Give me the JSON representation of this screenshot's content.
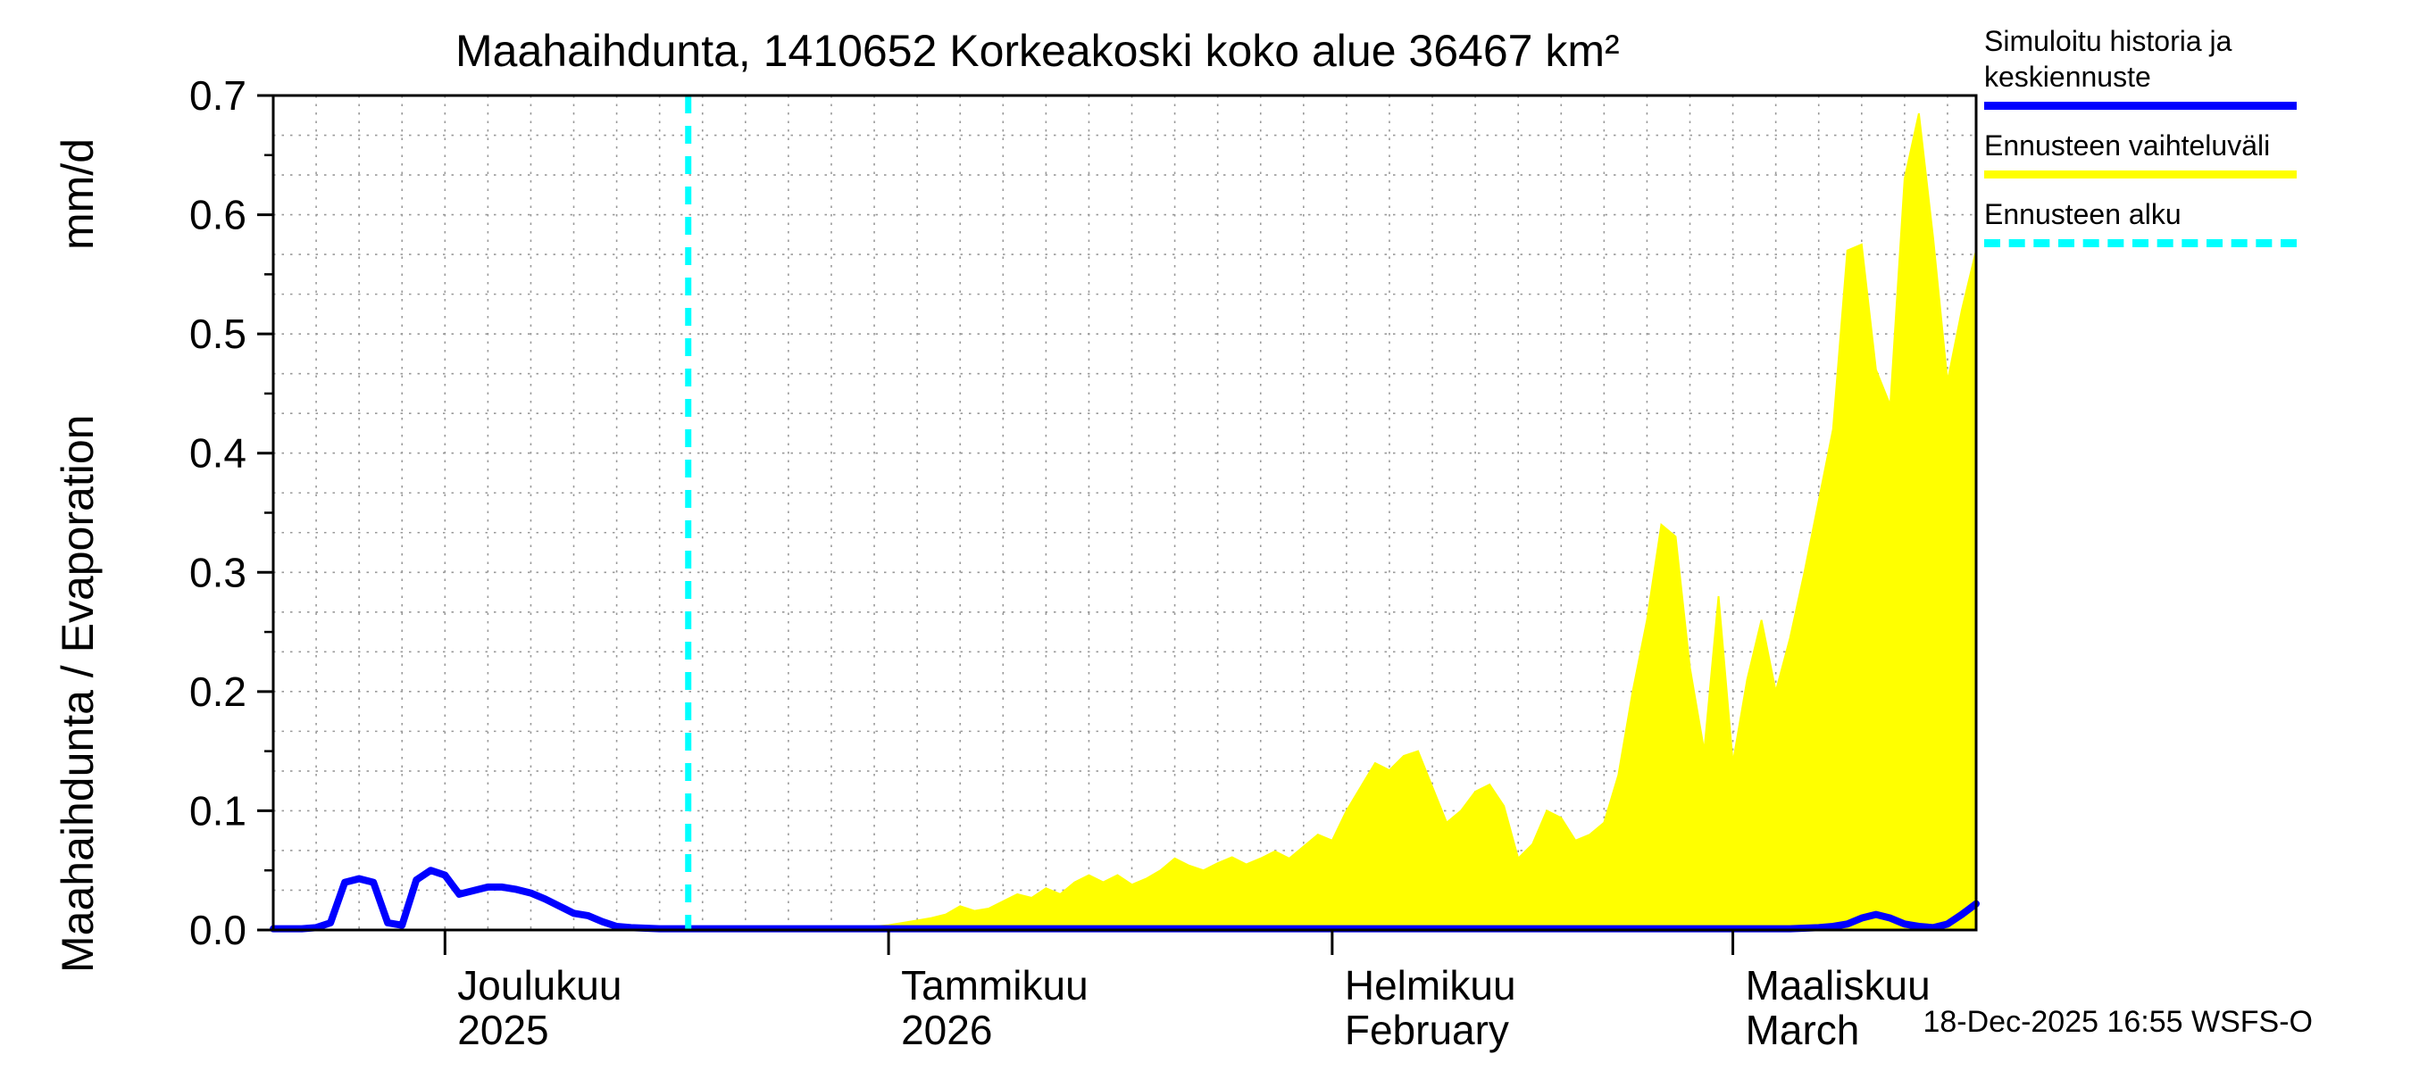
{
  "title": "Maahaihdunta, 1410652 Korkeakoski koko alue 36467 km²",
  "y_axis": {
    "label_main": "Maahaihdunta / Evaporation",
    "label_unit": "mm/d",
    "ticks": [
      "0.0",
      "0.1",
      "0.2",
      "0.3",
      "0.4",
      "0.5",
      "0.6",
      "0.7"
    ]
  },
  "legend": [
    {
      "label": "Simuloitu historia ja keskiennuste",
      "color": "#0000ff",
      "style": "solid"
    },
    {
      "label": "Ennusteen vaihteluväli",
      "color": "#ffff00",
      "style": "solid"
    },
    {
      "label": "Ennusteen alku",
      "color": "#00ffff",
      "style": "dashed"
    }
  ],
  "footer": {
    "timestamp": "18-Dec-2025 16:55 WSFS-O"
  },
  "chart_data": {
    "type": "area",
    "title": "Maahaihdunta, 1410652 Korkeakoski koko alue 36467 km²",
    "ylabel": "Maahaihdunta / Evaporation mm/d",
    "ylim": [
      0,
      0.7
    ],
    "grid": true,
    "legend_position": "top-right",
    "x_unit": "days from 2025-11-19",
    "x_range_days": 119,
    "forecast_marker": {
      "name": "Ennusteen alku",
      "color": "#00ffff",
      "style": "dashed",
      "day": 29
    },
    "months": [
      {
        "name": "Joulukuu",
        "sub": "2025",
        "day": 12
      },
      {
        "name": "Tammikuu",
        "sub": "2026",
        "day": 43
      },
      {
        "name": "Helmikuu",
        "sub": "February",
        "day": 74
      },
      {
        "name": "Maaliskuu",
        "sub": "March",
        "day": 102
      }
    ],
    "series": [
      {
        "name": "Ennusteen vaihteluväli",
        "type": "area",
        "color": "#ffff00",
        "baseline": 0,
        "points": [
          [
            29,
            0.0
          ],
          [
            34,
            0.001
          ],
          [
            38,
            0.001
          ],
          [
            41,
            0.002
          ],
          [
            43,
            0.004
          ],
          [
            45,
            0.008
          ],
          [
            46,
            0.01
          ],
          [
            47,
            0.013
          ],
          [
            48,
            0.02
          ],
          [
            49,
            0.016
          ],
          [
            50,
            0.018
          ],
          [
            51,
            0.024
          ],
          [
            52,
            0.03
          ],
          [
            53,
            0.027
          ],
          [
            54,
            0.035
          ],
          [
            55,
            0.03
          ],
          [
            56,
            0.04
          ],
          [
            57,
            0.046
          ],
          [
            58,
            0.04
          ],
          [
            59,
            0.046
          ],
          [
            60,
            0.038
          ],
          [
            61,
            0.043
          ],
          [
            62,
            0.05
          ],
          [
            63,
            0.06
          ],
          [
            64,
            0.054
          ],
          [
            65,
            0.05
          ],
          [
            66,
            0.056
          ],
          [
            67,
            0.061
          ],
          [
            68,
            0.055
          ],
          [
            69,
            0.06
          ],
          [
            70,
            0.066
          ],
          [
            71,
            0.06
          ],
          [
            72,
            0.07
          ],
          [
            73,
            0.08
          ],
          [
            74,
            0.075
          ],
          [
            75,
            0.1
          ],
          [
            76,
            0.12
          ],
          [
            77,
            0.14
          ],
          [
            78,
            0.134
          ],
          [
            79,
            0.146
          ],
          [
            80,
            0.15
          ],
          [
            81,
            0.12
          ],
          [
            82,
            0.09
          ],
          [
            83,
            0.1
          ],
          [
            84,
            0.116
          ],
          [
            85,
            0.122
          ],
          [
            86,
            0.104
          ],
          [
            87,
            0.06
          ],
          [
            88,
            0.072
          ],
          [
            89,
            0.1
          ],
          [
            90,
            0.094
          ],
          [
            91,
            0.075
          ],
          [
            92,
            0.08
          ],
          [
            93,
            0.09
          ],
          [
            94,
            0.13
          ],
          [
            95,
            0.2
          ],
          [
            96,
            0.26
          ],
          [
            97,
            0.34
          ],
          [
            98,
            0.33
          ],
          [
            99,
            0.22
          ],
          [
            100,
            0.15
          ],
          [
            101,
            0.28
          ],
          [
            102,
            0.14
          ],
          [
            103,
            0.21
          ],
          [
            104,
            0.26
          ],
          [
            105,
            0.2
          ],
          [
            106,
            0.245
          ],
          [
            107,
            0.3
          ],
          [
            108,
            0.36
          ],
          [
            109,
            0.42
          ],
          [
            110,
            0.57
          ],
          [
            111,
            0.575
          ],
          [
            112,
            0.47
          ],
          [
            113,
            0.44
          ],
          [
            114,
            0.63
          ],
          [
            115,
            0.685
          ],
          [
            116,
            0.58
          ],
          [
            117,
            0.46
          ],
          [
            118,
            0.52
          ],
          [
            119,
            0.57
          ]
        ]
      },
      {
        "name": "Simuloitu historia ja keskiennuste",
        "type": "line",
        "color": "#0000ff",
        "points": [
          [
            0,
            0.001
          ],
          [
            2,
            0.001
          ],
          [
            3,
            0.002
          ],
          [
            4,
            0.006
          ],
          [
            5,
            0.04
          ],
          [
            6,
            0.043
          ],
          [
            7,
            0.04
          ],
          [
            8,
            0.006
          ],
          [
            9,
            0.004
          ],
          [
            10,
            0.042
          ],
          [
            11,
            0.05
          ],
          [
            12,
            0.046
          ],
          [
            13,
            0.03
          ],
          [
            14,
            0.033
          ],
          [
            15,
            0.036
          ],
          [
            16,
            0.036
          ],
          [
            17,
            0.034
          ],
          [
            18,
            0.031
          ],
          [
            19,
            0.026
          ],
          [
            20,
            0.02
          ],
          [
            21,
            0.014
          ],
          [
            22,
            0.012
          ],
          [
            23,
            0.007
          ],
          [
            24,
            0.003
          ],
          [
            25,
            0.002
          ],
          [
            27,
            0.001
          ],
          [
            29,
            0.001
          ],
          [
            40,
            0.001
          ],
          [
            60,
            0.001
          ],
          [
            80,
            0.001
          ],
          [
            100,
            0.001
          ],
          [
            106,
            0.001
          ],
          [
            108,
            0.002
          ],
          [
            109,
            0.003
          ],
          [
            110,
            0.005
          ],
          [
            111,
            0.01
          ],
          [
            112,
            0.013
          ],
          [
            113,
            0.01
          ],
          [
            114,
            0.005
          ],
          [
            115,
            0.003
          ],
          [
            116,
            0.002
          ],
          [
            117,
            0.005
          ],
          [
            118,
            0.013
          ],
          [
            119,
            0.022
          ]
        ]
      }
    ]
  }
}
